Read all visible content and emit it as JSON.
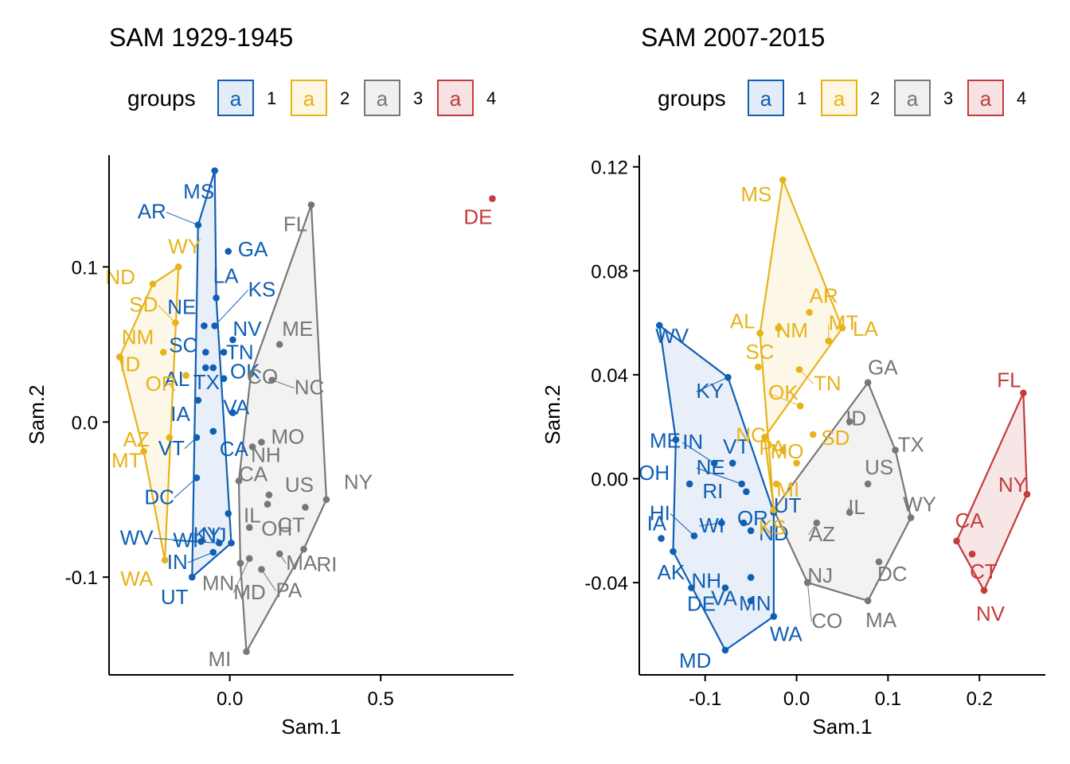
{
  "legend_title": "groups",
  "group_colors": {
    "1": "#0F5FB5",
    "2": "#E7B31A",
    "3": "#777777",
    "4": "#C43B3B"
  },
  "group_fills": {
    "1": "#E4ECF7",
    "2": "#FDF6E3",
    "3": "#F0F0F0",
    "4": "#F6E2E2"
  },
  "chart_data": [
    {
      "type": "scatter",
      "title": "SAM 1929-1945",
      "xlabel": "Sam.1",
      "ylabel": "Sam.2",
      "xlim": [
        -0.4,
        0.94
      ],
      "ylim": [
        -0.163,
        0.172
      ],
      "x_ticks": [
        0.0,
        0.5
      ],
      "x_tick_labels": [
        "0.0",
        "0.5"
      ],
      "y_ticks": [
        -0.1,
        0.0,
        0.1
      ],
      "y_tick_labels": [
        "-0.1",
        "0.0",
        "0.1"
      ],
      "legend": {
        "title": "groups",
        "position": "top",
        "entries": [
          "1",
          "2",
          "3",
          "4"
        ]
      },
      "hulls": {
        "1": [
          "MS",
          "LA",
          "NJ",
          "UT",
          "AR"
        ],
        "2": [
          "WY",
          "WA",
          "MT",
          "ID",
          "ND"
        ],
        "3": [
          "FL",
          "NY",
          "RI",
          "MI",
          "MN",
          "CA",
          "CO"
        ],
        "4": []
      },
      "points": [
        {
          "label": "MS",
          "group": "1",
          "x": -0.05,
          "y": 0.162
        },
        {
          "label": "AR",
          "group": "1",
          "x": -0.105,
          "y": 0.127
        },
        {
          "label": "GA",
          "group": "1",
          "x": -0.005,
          "y": 0.11
        },
        {
          "label": "LA",
          "group": "1",
          "x": -0.045,
          "y": 0.08
        },
        {
          "label": "NE",
          "group": "1",
          "x": -0.085,
          "y": 0.062
        },
        {
          "label": "KS",
          "group": "1",
          "x": -0.05,
          "y": 0.062
        },
        {
          "label": "NV",
          "group": "1",
          "x": 0.01,
          "y": 0.053
        },
        {
          "label": "SC",
          "group": "1",
          "x": -0.08,
          "y": 0.045
        },
        {
          "label": "TN",
          "group": "1",
          "x": -0.02,
          "y": 0.045
        },
        {
          "label": "AL",
          "group": "1",
          "x": -0.08,
          "y": 0.035
        },
        {
          "label": "TX",
          "group": "1",
          "x": -0.055,
          "y": 0.035
        },
        {
          "label": "OK",
          "group": "1",
          "x": -0.02,
          "y": 0.028
        },
        {
          "label": "IA",
          "group": "1",
          "x": -0.105,
          "y": 0.014
        },
        {
          "label": "VA",
          "group": "1",
          "x": 0.01,
          "y": 0.006
        },
        {
          "label": "CA",
          "group": "1",
          "x": -0.055,
          "y": -0.006
        },
        {
          "label": "VT",
          "group": "1",
          "x": -0.11,
          "y": -0.01
        },
        {
          "label": "DC",
          "group": "1",
          "x": -0.11,
          "y": -0.036
        },
        {
          "label": "KY",
          "group": "1",
          "x": -0.005,
          "y": -0.059
        },
        {
          "label": "WV",
          "group": "1",
          "x": -0.095,
          "y": -0.077
        },
        {
          "label": "WI",
          "group": "1",
          "x": -0.035,
          "y": -0.078
        },
        {
          "label": "NJ",
          "group": "1",
          "x": 0.005,
          "y": -0.078
        },
        {
          "label": "IN",
          "group": "1",
          "x": -0.055,
          "y": -0.084
        },
        {
          "label": "UT",
          "group": "1",
          "x": -0.125,
          "y": -0.1
        },
        {
          "label": "WY",
          "group": "2",
          "x": -0.17,
          "y": 0.1
        },
        {
          "label": "ND",
          "group": "2",
          "x": -0.255,
          "y": 0.089
        },
        {
          "label": "SD",
          "group": "2",
          "x": -0.18,
          "y": 0.064
        },
        {
          "label": "NM",
          "group": "2",
          "x": -0.22,
          "y": 0.045
        },
        {
          "label": "ID",
          "group": "2",
          "x": -0.365,
          "y": 0.042
        },
        {
          "label": "OR",
          "group": "2",
          "x": -0.145,
          "y": 0.03
        },
        {
          "label": "AZ",
          "group": "2",
          "x": -0.2,
          "y": -0.01
        },
        {
          "label": "MT",
          "group": "2",
          "x": -0.285,
          "y": -0.019
        },
        {
          "label": "WA",
          "group": "2",
          "x": -0.215,
          "y": -0.089
        },
        {
          "label": "FL",
          "group": "3",
          "x": 0.27,
          "y": 0.14
        },
        {
          "label": "ME",
          "group": "3",
          "x": 0.165,
          "y": 0.05
        },
        {
          "label": "CO",
          "group": "3",
          "x": 0.07,
          "y": 0.031
        },
        {
          "label": "NC",
          "group": "3",
          "x": 0.14,
          "y": 0.027
        },
        {
          "label": "MO",
          "group": "3",
          "x": 0.105,
          "y": -0.013
        },
        {
          "label": "NH",
          "group": "3",
          "x": 0.075,
          "y": -0.016
        },
        {
          "label": "CA",
          "group": "3",
          "x": 0.03,
          "y": -0.038
        },
        {
          "label": "US",
          "group": "3",
          "x": 0.13,
          "y": -0.047
        },
        {
          "label": "NY",
          "group": "3",
          "x": 0.32,
          "y": -0.05
        },
        {
          "label": "CT",
          "group": "3",
          "x": 0.25,
          "y": -0.055
        },
        {
          "label": "IL",
          "group": "3",
          "x": 0.125,
          "y": -0.053
        },
        {
          "label": "OH",
          "group": "3",
          "x": 0.065,
          "y": -0.068
        },
        {
          "label": "RI",
          "group": "3",
          "x": 0.245,
          "y": -0.082
        },
        {
          "label": "MN",
          "group": "3",
          "x": 0.035,
          "y": -0.091
        },
        {
          "label": "MA",
          "group": "3",
          "x": 0.165,
          "y": -0.085
        },
        {
          "label": "MD",
          "group": "3",
          "x": 0.065,
          "y": -0.088
        },
        {
          "label": "PA",
          "group": "3",
          "x": 0.105,
          "y": -0.095
        },
        {
          "label": "MI",
          "group": "3",
          "x": 0.055,
          "y": -0.148
        },
        {
          "label": "DE",
          "group": "4",
          "x": 0.87,
          "y": 0.144
        }
      ]
    },
    {
      "type": "scatter",
      "title": "SAM 2007-2015",
      "xlabel": "Sam.1",
      "ylabel": "Sam.2",
      "xlim": [
        -0.172,
        0.272
      ],
      "ylim": [
        -0.0755,
        0.1245
      ],
      "x_ticks": [
        -0.1,
        0.0,
        0.1,
        0.2
      ],
      "x_tick_labels": [
        "-0.1",
        "0.0",
        "0.1",
        "0.2"
      ],
      "y_ticks": [
        -0.04,
        0.0,
        0.04,
        0.08,
        0.12
      ],
      "y_tick_labels": [
        "-0.04",
        "0.00",
        "0.04",
        "0.08",
        "0.12"
      ],
      "legend": {
        "title": "groups",
        "position": "top",
        "entries": [
          "1",
          "2",
          "3",
          "4"
        ]
      },
      "hulls": {
        "1": [
          "WV",
          "ME",
          "AK",
          "MD",
          "WA",
          "UT",
          "KY"
        ],
        "2": [
          "MS",
          "LA",
          "NC",
          "KS",
          "AL"
        ],
        "3": [
          "GA",
          "TX",
          "WY",
          "MA",
          "NJ",
          "KS"
        ],
        "4": [
          "FL",
          "NY",
          "NV",
          "CA"
        ]
      },
      "points": [
        {
          "label": "WV",
          "group": "1",
          "x": -0.15,
          "y": 0.059
        },
        {
          "label": "KY",
          "group": "1",
          "x": -0.075,
          "y": 0.039
        },
        {
          "label": "ME",
          "group": "1",
          "x": -0.132,
          "y": 0.015
        },
        {
          "label": "IN",
          "group": "1",
          "x": -0.09,
          "y": 0.006
        },
        {
          "label": "VT",
          "group": "1",
          "x": -0.07,
          "y": 0.006
        },
        {
          "label": "OH",
          "group": "1",
          "x": -0.117,
          "y": -0.002
        },
        {
          "label": "NE",
          "group": "1",
          "x": -0.06,
          "y": -0.002
        },
        {
          "label": "RI",
          "group": "1",
          "x": -0.055,
          "y": -0.005
        },
        {
          "label": "HI",
          "group": "1",
          "x": -0.112,
          "y": -0.022
        },
        {
          "label": "OR",
          "group": "1",
          "x": -0.058,
          "y": -0.017
        },
        {
          "label": "WI",
          "group": "1",
          "x": -0.082,
          "y": -0.017
        },
        {
          "label": "IA",
          "group": "1",
          "x": -0.148,
          "y": -0.023
        },
        {
          "label": "ND",
          "group": "1",
          "x": -0.05,
          "y": -0.02
        },
        {
          "label": "UT",
          "group": "1",
          "x": -0.025,
          "y": -0.013
        },
        {
          "label": "AK",
          "group": "1",
          "x": -0.135,
          "y": -0.028
        },
        {
          "label": "NH",
          "group": "1",
          "x": -0.115,
          "y": -0.042
        },
        {
          "label": "VA",
          "group": "1",
          "x": -0.05,
          "y": -0.038
        },
        {
          "label": "DE",
          "group": "1",
          "x": -0.078,
          "y": -0.042
        },
        {
          "label": "MN",
          "group": "1",
          "x": -0.05,
          "y": -0.047
        },
        {
          "label": "WA",
          "group": "1",
          "x": -0.025,
          "y": -0.053
        },
        {
          "label": "MD",
          "group": "1",
          "x": -0.078,
          "y": -0.066
        },
        {
          "label": "MS",
          "group": "2",
          "x": -0.015,
          "y": 0.115
        },
        {
          "label": "AR",
          "group": "2",
          "x": 0.014,
          "y": 0.064
        },
        {
          "label": "LA",
          "group": "2",
          "x": 0.05,
          "y": 0.058
        },
        {
          "label": "AL",
          "group": "2",
          "x": -0.04,
          "y": 0.056
        },
        {
          "label": "NM",
          "group": "2",
          "x": -0.02,
          "y": 0.058
        },
        {
          "label": "MT",
          "group": "2",
          "x": 0.035,
          "y": 0.053
        },
        {
          "label": "SC",
          "group": "2",
          "x": -0.042,
          "y": 0.043
        },
        {
          "label": "TN",
          "group": "2",
          "x": 0.003,
          "y": 0.042
        },
        {
          "label": "OK",
          "group": "2",
          "x": 0.004,
          "y": 0.028
        },
        {
          "label": "NC",
          "group": "2",
          "x": -0.035,
          "y": 0.016
        },
        {
          "label": "SD",
          "group": "2",
          "x": 0.018,
          "y": 0.017
        },
        {
          "label": "PA",
          "group": "2",
          "x": -0.015,
          "y": 0.011
        },
        {
          "label": "MO",
          "group": "2",
          "x": 0.0,
          "y": 0.006
        },
        {
          "label": "MI",
          "group": "2",
          "x": -0.022,
          "y": -0.002
        },
        {
          "label": "KS",
          "group": "2",
          "x": -0.025,
          "y": -0.012
        },
        {
          "label": "GA",
          "group": "3",
          "x": 0.078,
          "y": 0.037
        },
        {
          "label": "ID",
          "group": "3",
          "x": 0.058,
          "y": 0.022
        },
        {
          "label": "TX",
          "group": "3",
          "x": 0.108,
          "y": 0.011
        },
        {
          "label": "US",
          "group": "3",
          "x": 0.078,
          "y": -0.002
        },
        {
          "label": "IL",
          "group": "3",
          "x": 0.058,
          "y": -0.013
        },
        {
          "label": "WY",
          "group": "3",
          "x": 0.125,
          "y": -0.015
        },
        {
          "label": "AZ",
          "group": "3",
          "x": 0.022,
          "y": -0.017
        },
        {
          "label": "DC",
          "group": "3",
          "x": 0.09,
          "y": -0.032
        },
        {
          "label": "NJ",
          "group": "3",
          "x": 0.012,
          "y": -0.04
        },
        {
          "label": "CO",
          "group": "3",
          "x": 0.012,
          "y": -0.04
        },
        {
          "label": "MA",
          "group": "3",
          "x": 0.078,
          "y": -0.047
        },
        {
          "label": "FL",
          "group": "4",
          "x": 0.248,
          "y": 0.033
        },
        {
          "label": "NY",
          "group": "4",
          "x": 0.252,
          "y": -0.006
        },
        {
          "label": "CA",
          "group": "4",
          "x": 0.175,
          "y": -0.024
        },
        {
          "label": "CT",
          "group": "4",
          "x": 0.192,
          "y": -0.029
        },
        {
          "label": "NV",
          "group": "4",
          "x": 0.205,
          "y": -0.043
        }
      ]
    }
  ]
}
